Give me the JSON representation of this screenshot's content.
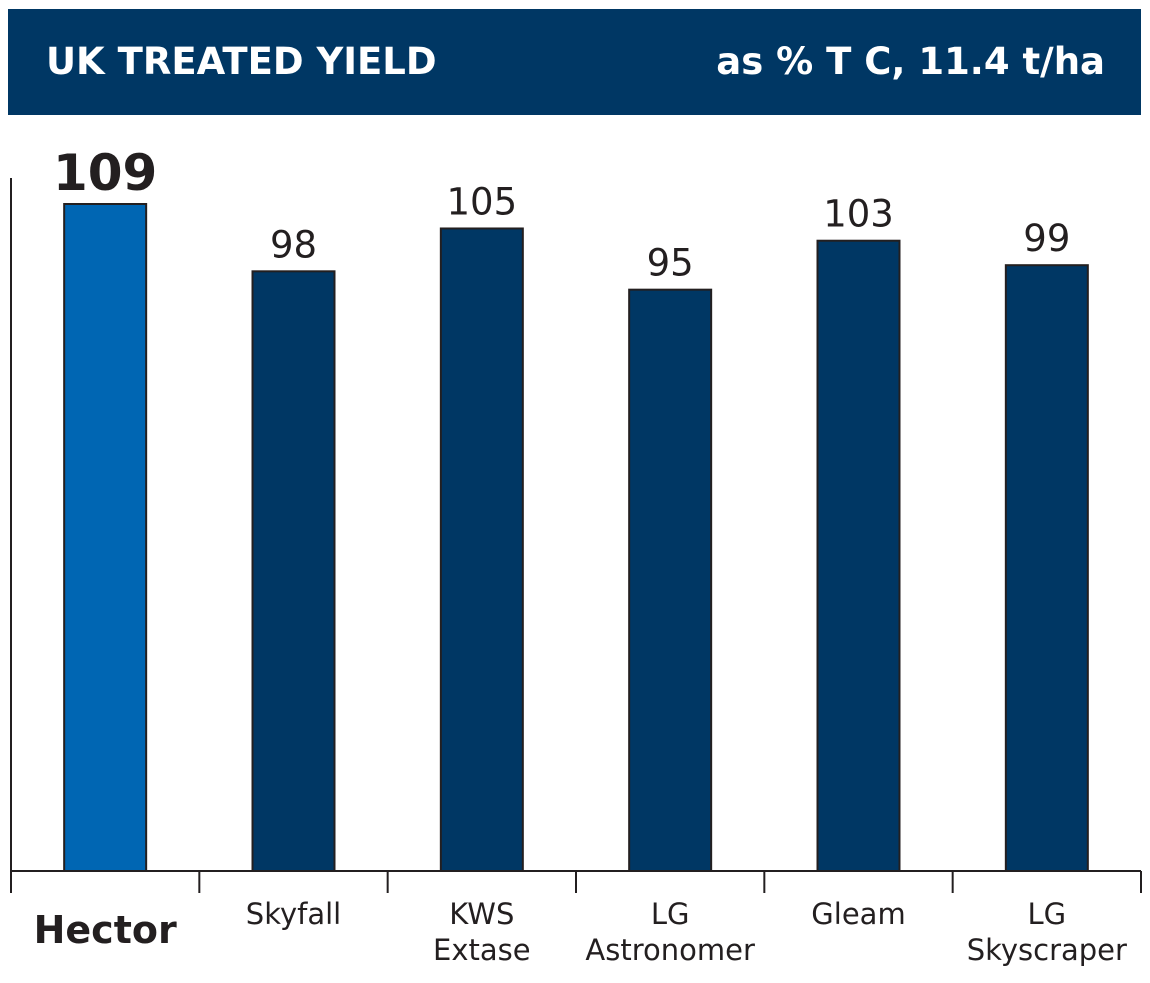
{
  "header": {
    "title": "UK TREATED YIELD",
    "subtitle": "as % T C, 11.4 t/ha"
  },
  "colors": {
    "header_bg": "#003764",
    "bar_default": "#003764",
    "bar_highlight": "#0066b3",
    "axis": "#231f20",
    "text": "#231f20"
  },
  "chart_data": {
    "type": "bar",
    "title": "UK TREATED YIELD",
    "subtitle": "as % T C, 11.4 t/ha",
    "categories": [
      "Hector",
      "Skyfall",
      "KWS\nExtase",
      "LG\nAstronomer",
      "Gleam",
      "LG\nSkyscraper"
    ],
    "values": [
      109,
      98,
      105,
      95,
      103,
      99
    ],
    "highlight_index": 0,
    "ylim": [
      0,
      109
    ],
    "xlabel": "",
    "ylabel": "",
    "grid": false,
    "legend": "none"
  }
}
